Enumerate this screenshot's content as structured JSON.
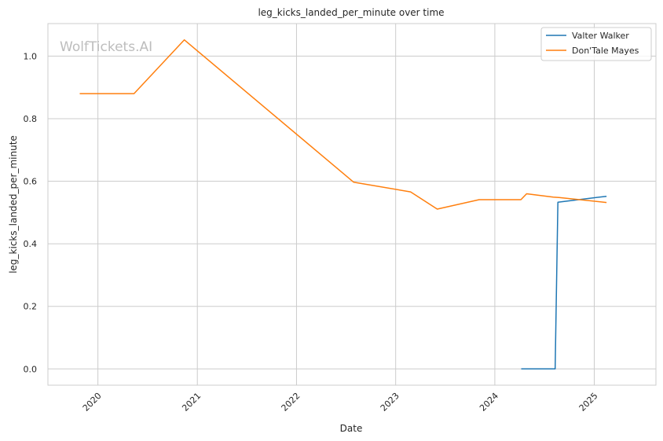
{
  "chart_data": {
    "type": "line",
    "title": "leg_kicks_landed_per_minute over time",
    "xlabel": "Date",
    "ylabel": "leg_kicks_landed_per_minute",
    "watermark": "WolfTickets.AI",
    "x_ticks": [
      "2020",
      "2021",
      "2022",
      "2023",
      "2024",
      "2025"
    ],
    "y_ticks": [
      "0.0",
      "0.2",
      "0.4",
      "0.6",
      "0.8",
      "1.0"
    ],
    "xlim": [
      "2019-07-01",
      "2025-08-16"
    ],
    "ylim": [
      -0.052,
      1.104
    ],
    "grid": true,
    "legend_position": "top-right",
    "series": [
      {
        "name": "Valter Walker",
        "color": "#1f77b4",
        "points": [
          {
            "x": "2024-04-07",
            "y": 0.0
          },
          {
            "x": "2024-08-10",
            "y": 0.0
          },
          {
            "x": "2024-08-20",
            "y": 0.533
          },
          {
            "x": "2025-02-15",
            "y": 0.552
          }
        ]
      },
      {
        "name": "Don'Tale Mayes",
        "color": "#ff7f0e",
        "points": [
          {
            "x": "2019-10-26",
            "y": 0.88
          },
          {
            "x": "2020-05-13",
            "y": 0.88
          },
          {
            "x": "2020-11-14",
            "y": 1.052
          },
          {
            "x": "2022-07-30",
            "y": 0.597
          },
          {
            "x": "2023-02-25",
            "y": 0.566
          },
          {
            "x": "2023-06-03",
            "y": 0.511
          },
          {
            "x": "2023-11-04",
            "y": 0.541
          },
          {
            "x": "2024-04-06",
            "y": 0.541
          },
          {
            "x": "2024-04-27",
            "y": 0.56
          },
          {
            "x": "2024-08-03",
            "y": 0.549
          },
          {
            "x": "2024-08-24",
            "y": 0.548
          },
          {
            "x": "2025-02-15",
            "y": 0.532
          }
        ]
      }
    ]
  }
}
